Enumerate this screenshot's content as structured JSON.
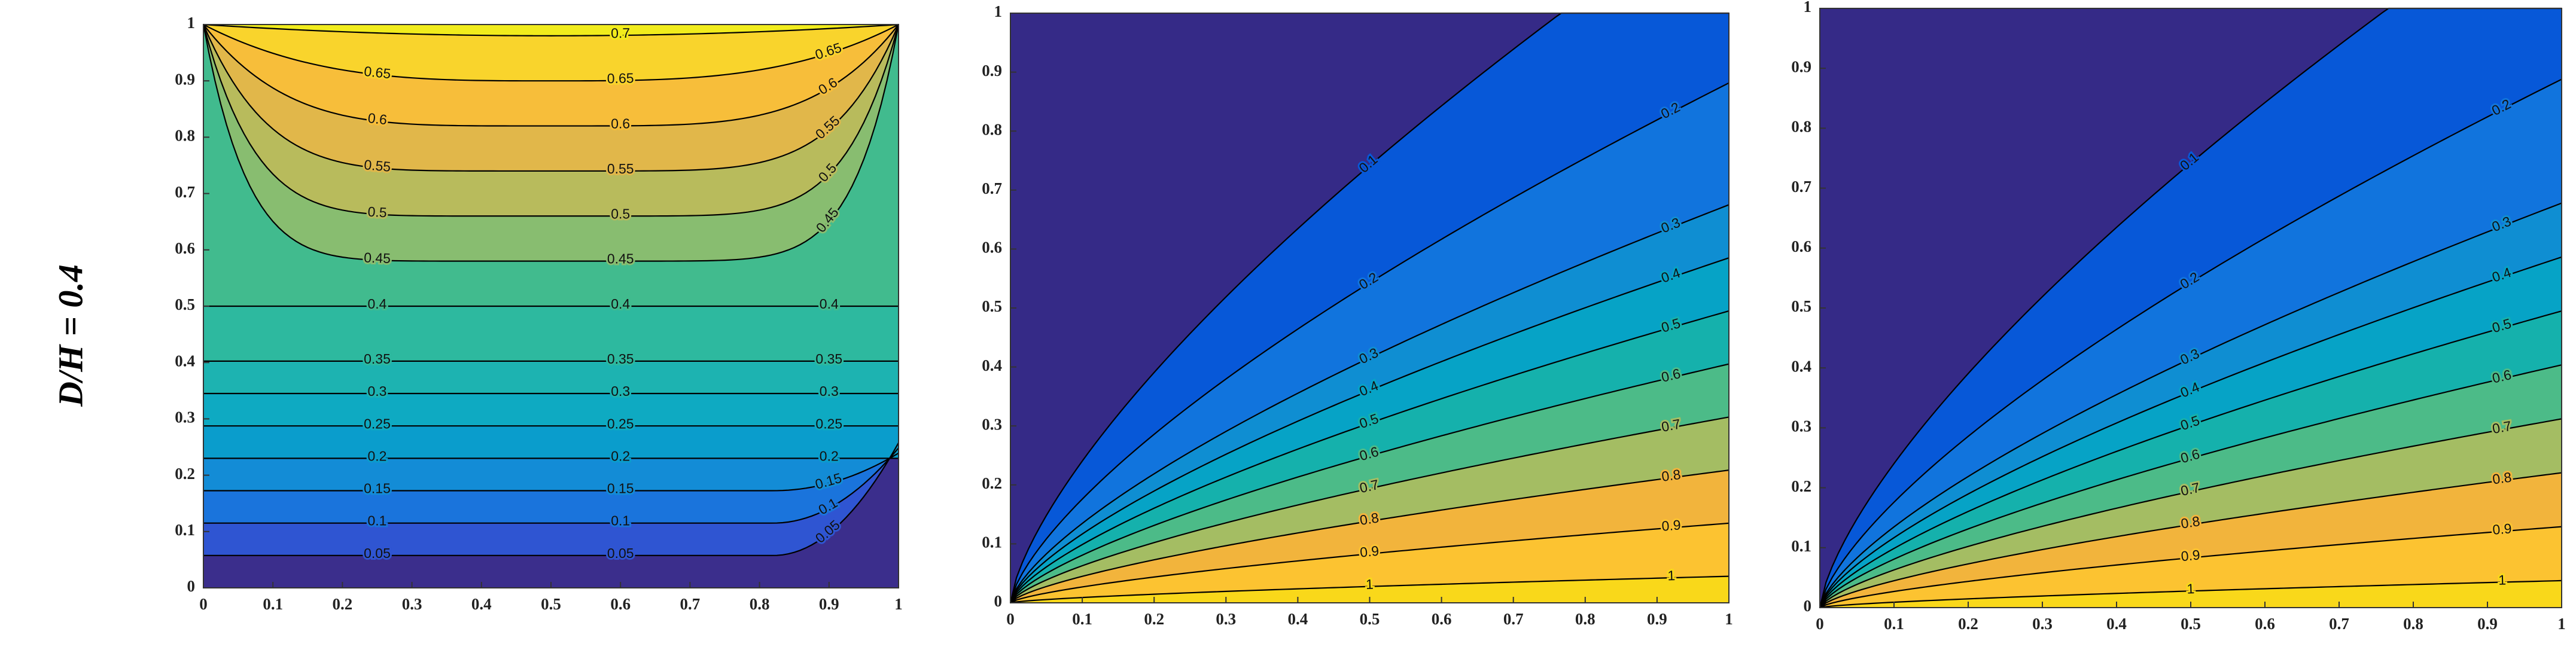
{
  "row_label": "D/H = 0.4",
  "chart_data": [
    {
      "type": "contour",
      "xlim": [
        0,
        1
      ],
      "ylim": [
        0,
        1
      ],
      "xticks": [
        0,
        0.1,
        0.2,
        0.3,
        0.4,
        0.5,
        0.6,
        0.7,
        0.8,
        0.9,
        1
      ],
      "yticks": [
        0,
        0.1,
        0.2,
        0.3,
        0.4,
        0.5,
        0.6,
        0.7,
        0.8,
        0.9,
        1
      ],
      "levels": [
        0.05,
        0.1,
        0.15,
        0.2,
        0.25,
        0.3,
        0.35,
        0.4,
        0.45,
        0.5,
        0.55,
        0.6,
        0.65,
        0.7
      ],
      "colors": [
        "#3b2e8c",
        "#2f55d2",
        "#1a74dc",
        "#138cd6",
        "#0a9dcc",
        "#0eaac2",
        "#1db3b1",
        "#2db99f",
        "#41bb8e",
        "#88bd70",
        "#b8bb5c",
        "#e1b74a",
        "#f7be3a",
        "#f9d42c",
        "#f1ec1c"
      ]
    },
    {
      "type": "contour",
      "xlim": [
        0,
        1
      ],
      "ylim": [
        0,
        1
      ],
      "xticks": [
        0,
        0.1,
        0.2,
        0.3,
        0.4,
        0.5,
        0.6,
        0.7,
        0.8,
        0.9,
        1
      ],
      "yticks": [
        0,
        0.1,
        0.2,
        0.3,
        0.4,
        0.5,
        0.6,
        0.7,
        0.8,
        0.9,
        1
      ],
      "levels": [
        0.1,
        0.2,
        0.3,
        0.4,
        0.5,
        0.6,
        0.7,
        0.8,
        0.9,
        1
      ],
      "colors": [
        "#352a87",
        "#0758d8",
        "#1174dd",
        "#0f8ed2",
        "#06a3c6",
        "#15b1ac",
        "#4cbb88",
        "#a4bd63",
        "#f2b43c",
        "#fcc331",
        "#f9d81a"
      ]
    },
    {
      "type": "contour",
      "xlim": [
        0,
        1
      ],
      "ylim": [
        0,
        1
      ],
      "xticks": [
        0,
        0.1,
        0.2,
        0.3,
        0.4,
        0.5,
        0.6,
        0.7,
        0.8,
        0.9,
        1
      ],
      "yticks": [
        0,
        0.1,
        0.2,
        0.3,
        0.4,
        0.5,
        0.6,
        0.7,
        0.8,
        0.9,
        1
      ],
      "levels": [
        0.1,
        0.2,
        0.3,
        0.4,
        0.5,
        0.6,
        0.7,
        0.8,
        0.9,
        1
      ],
      "colors": [
        "#352a87",
        "#0758d8",
        "#1174dd",
        "#0f8ed2",
        "#06a3c6",
        "#15b1ac",
        "#4cbb88",
        "#a4bd63",
        "#f2b43c",
        "#fcc331",
        "#f9d81a"
      ]
    }
  ]
}
